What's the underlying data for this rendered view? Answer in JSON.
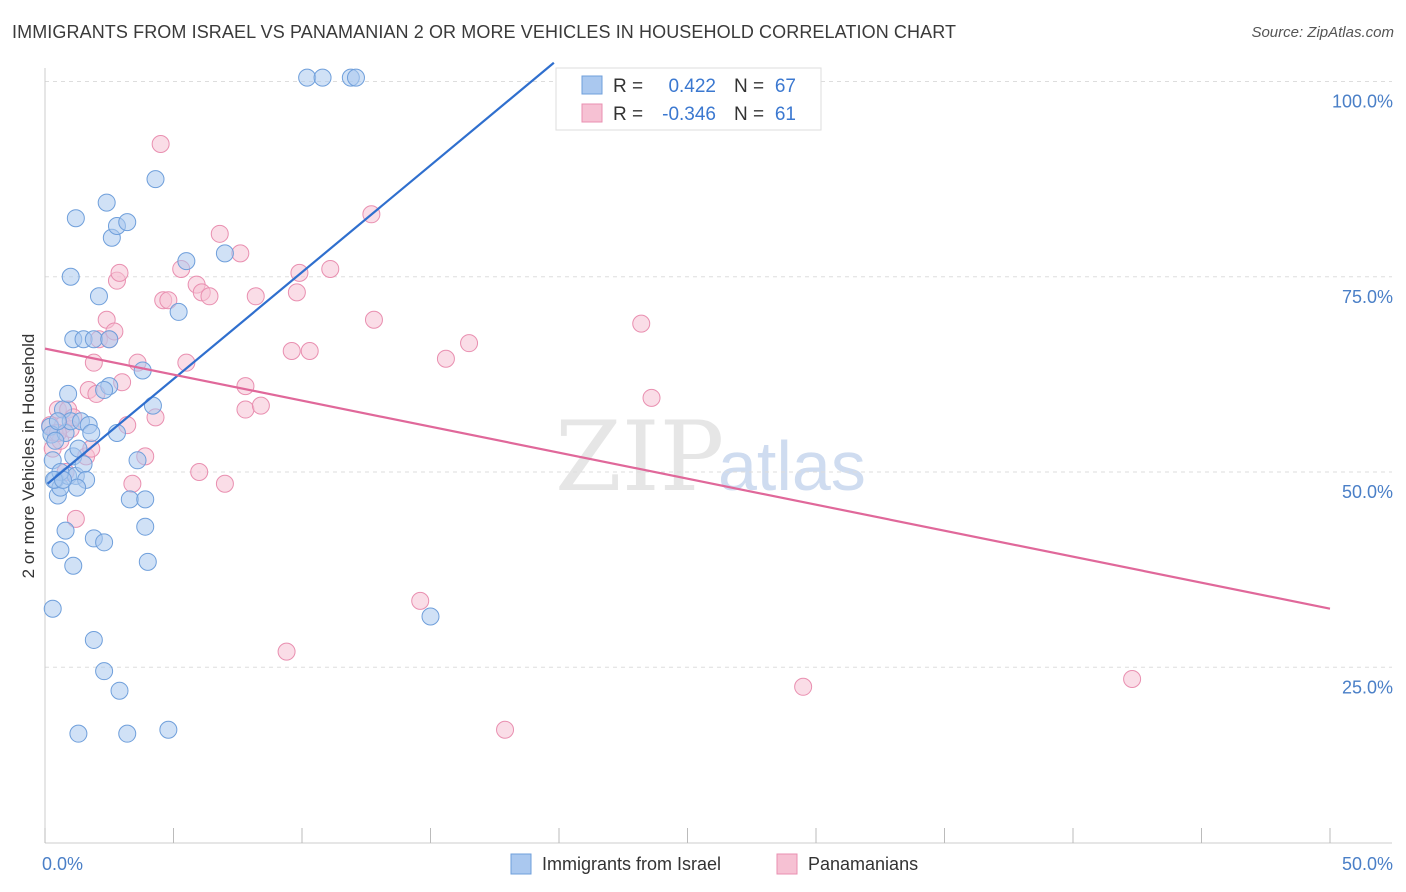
{
  "title": "IMMIGRANTS FROM ISRAEL VS PANAMANIAN 2 OR MORE VEHICLES IN HOUSEHOLD CORRELATION CHART",
  "source": "Source: ZipAtlas.com",
  "watermark": {
    "zip": "ZIP",
    "atlas": "atlas"
  },
  "colors": {
    "blue_fill": "#aac8ef",
    "blue_stroke": "#6f9fdb",
    "blue_line": "#2f6fce",
    "pink_fill": "#f6c1d3",
    "pink_stroke": "#e98fb0",
    "pink_line": "#e0689a",
    "grid": "#dddddd",
    "tick_text": "#4a7fc7"
  },
  "stats": [
    {
      "r_label": "R =",
      "r_value": "0.422",
      "n_label": "N =",
      "n_value": "67"
    },
    {
      "r_label": "R =",
      "r_value": "-0.346",
      "n_label": "N =",
      "n_value": "61"
    }
  ],
  "chart_data": {
    "type": "scatter",
    "title": "IMMIGRANTS FROM ISRAEL VS PANAMANIAN 2 OR MORE VEHICLES IN HOUSEHOLD CORRELATION CHART",
    "xlabel": "",
    "ylabel": "2 or more Vehicles in Household",
    "xlim": [
      0,
      50
    ],
    "ylim": [
      2.5,
      102.5
    ],
    "x_tick_labels": [
      {
        "value": 0,
        "label": "0.0%"
      },
      {
        "value": 50,
        "label": "50.0%"
      }
    ],
    "y_tick_labels": [
      {
        "value": 100,
        "label": "100.0%"
      },
      {
        "value": 75,
        "label": "75.0%"
      },
      {
        "value": 50,
        "label": "50.0%"
      },
      {
        "value": 25,
        "label": "25.0%"
      }
    ],
    "legend_position": "bottom-center",
    "series": [
      {
        "name": "Immigrants from Israel",
        "color": "blue",
        "trend": {
          "x0": 0.1,
          "y0": 48.5,
          "x1": 19.8,
          "y1": 102.4
        },
        "points": [
          [
            0.2,
            55.8
          ],
          [
            0.25,
            54.8
          ],
          [
            0.3,
            51.5
          ],
          [
            0.4,
            49
          ],
          [
            0.5,
            47
          ],
          [
            0.6,
            48
          ],
          [
            0.7,
            58
          ],
          [
            0.8,
            55
          ],
          [
            0.9,
            49.5
          ],
          [
            1.0,
            56.5
          ],
          [
            1.1,
            52
          ],
          [
            1.2,
            49.5
          ],
          [
            1.3,
            53
          ],
          [
            1.4,
            56.5
          ],
          [
            1.5,
            51
          ],
          [
            1.6,
            49
          ],
          [
            1.7,
            56
          ],
          [
            1.8,
            55
          ],
          [
            0.9,
            60
          ],
          [
            0.6,
            50
          ],
          [
            1.25,
            48
          ],
          [
            1.1,
            67
          ],
          [
            1.0,
            75
          ],
          [
            1.2,
            82.5
          ],
          [
            1.5,
            67
          ],
          [
            1.9,
            67
          ],
          [
            2.5,
            67
          ],
          [
            2.1,
            72.5
          ],
          [
            2.4,
            84.5
          ],
          [
            2.6,
            80
          ],
          [
            2.8,
            81.5
          ],
          [
            3.2,
            82
          ],
          [
            2.5,
            61
          ],
          [
            3.8,
            63
          ],
          [
            3.6,
            51.5
          ],
          [
            4.2,
            58.5
          ],
          [
            5.2,
            70.5
          ],
          [
            4.3,
            87.5
          ],
          [
            7.0,
            78
          ],
          [
            5.5,
            77
          ],
          [
            2.3,
            60.5
          ],
          [
            2.8,
            55
          ],
          [
            1.9,
            41.5
          ],
          [
            2.3,
            41
          ],
          [
            3.3,
            46.5
          ],
          [
            3.9,
            46.5
          ],
          [
            3.9,
            43
          ],
          [
            4.0,
            38.5
          ],
          [
            0.8,
            42.5
          ],
          [
            0.6,
            40
          ],
          [
            1.1,
            38
          ],
          [
            0.3,
            32.5
          ],
          [
            1.9,
            28.5
          ],
          [
            2.3,
            24.5
          ],
          [
            2.9,
            22
          ],
          [
            1.3,
            16.5
          ],
          [
            3.2,
            16.5
          ],
          [
            4.8,
            17
          ],
          [
            15.0,
            31.5
          ],
          [
            10.2,
            100.5
          ],
          [
            10.8,
            100.5
          ],
          [
            11.9,
            100.5
          ],
          [
            12.1,
            100.5
          ],
          [
            0.4,
            54
          ],
          [
            0.5,
            56.5
          ],
          [
            0.35,
            49
          ],
          [
            0.7,
            49
          ]
        ]
      },
      {
        "name": "Panamanians",
        "color": "pink",
        "trend": {
          "x0": 0,
          "y0": 65.8,
          "x1": 50,
          "y1": 32.5
        },
        "points": [
          [
            0.2,
            56
          ],
          [
            0.3,
            53
          ],
          [
            0.4,
            55
          ],
          [
            0.5,
            58
          ],
          [
            0.6,
            54
          ],
          [
            0.7,
            56
          ],
          [
            0.8,
            50
          ],
          [
            0.9,
            58
          ],
          [
            1.0,
            55.5
          ],
          [
            1.2,
            44
          ],
          [
            1.6,
            52
          ],
          [
            1.7,
            60.5
          ],
          [
            2.0,
            60
          ],
          [
            2.1,
            67
          ],
          [
            2.5,
            67
          ],
          [
            2.4,
            69.5
          ],
          [
            2.8,
            74.5
          ],
          [
            2.9,
            75.5
          ],
          [
            3.0,
            61.5
          ],
          [
            3.2,
            56
          ],
          [
            3.4,
            48.5
          ],
          [
            3.6,
            64
          ],
          [
            3.9,
            52
          ],
          [
            4.3,
            57
          ],
          [
            4.5,
            92
          ],
          [
            4.6,
            72
          ],
          [
            4.8,
            72
          ],
          [
            5.3,
            76
          ],
          [
            5.5,
            64
          ],
          [
            5.9,
            74
          ],
          [
            6.0,
            50
          ],
          [
            6.1,
            73
          ],
          [
            6.4,
            72.5
          ],
          [
            6.8,
            80.5
          ],
          [
            7.0,
            48.5
          ],
          [
            7.6,
            78
          ],
          [
            7.8,
            58
          ],
          [
            7.8,
            61
          ],
          [
            8.2,
            72.5
          ],
          [
            8.4,
            58.5
          ],
          [
            9.4,
            27
          ],
          [
            9.6,
            65.5
          ],
          [
            9.8,
            73
          ],
          [
            9.9,
            75.5
          ],
          [
            10.3,
            65.5
          ],
          [
            11.1,
            76
          ],
          [
            12.7,
            83
          ],
          [
            12.8,
            69.5
          ],
          [
            14.6,
            33.5
          ],
          [
            15.6,
            64.5
          ],
          [
            16.5,
            66.5
          ],
          [
            17.9,
            17
          ],
          [
            23.2,
            69
          ],
          [
            23.6,
            59.5
          ],
          [
            29.5,
            22.5
          ],
          [
            42.3,
            23.5
          ],
          [
            1.9,
            64
          ],
          [
            1.1,
            57
          ],
          [
            0.5,
            55
          ],
          [
            1.8,
            53
          ],
          [
            2.7,
            68
          ]
        ]
      }
    ]
  }
}
